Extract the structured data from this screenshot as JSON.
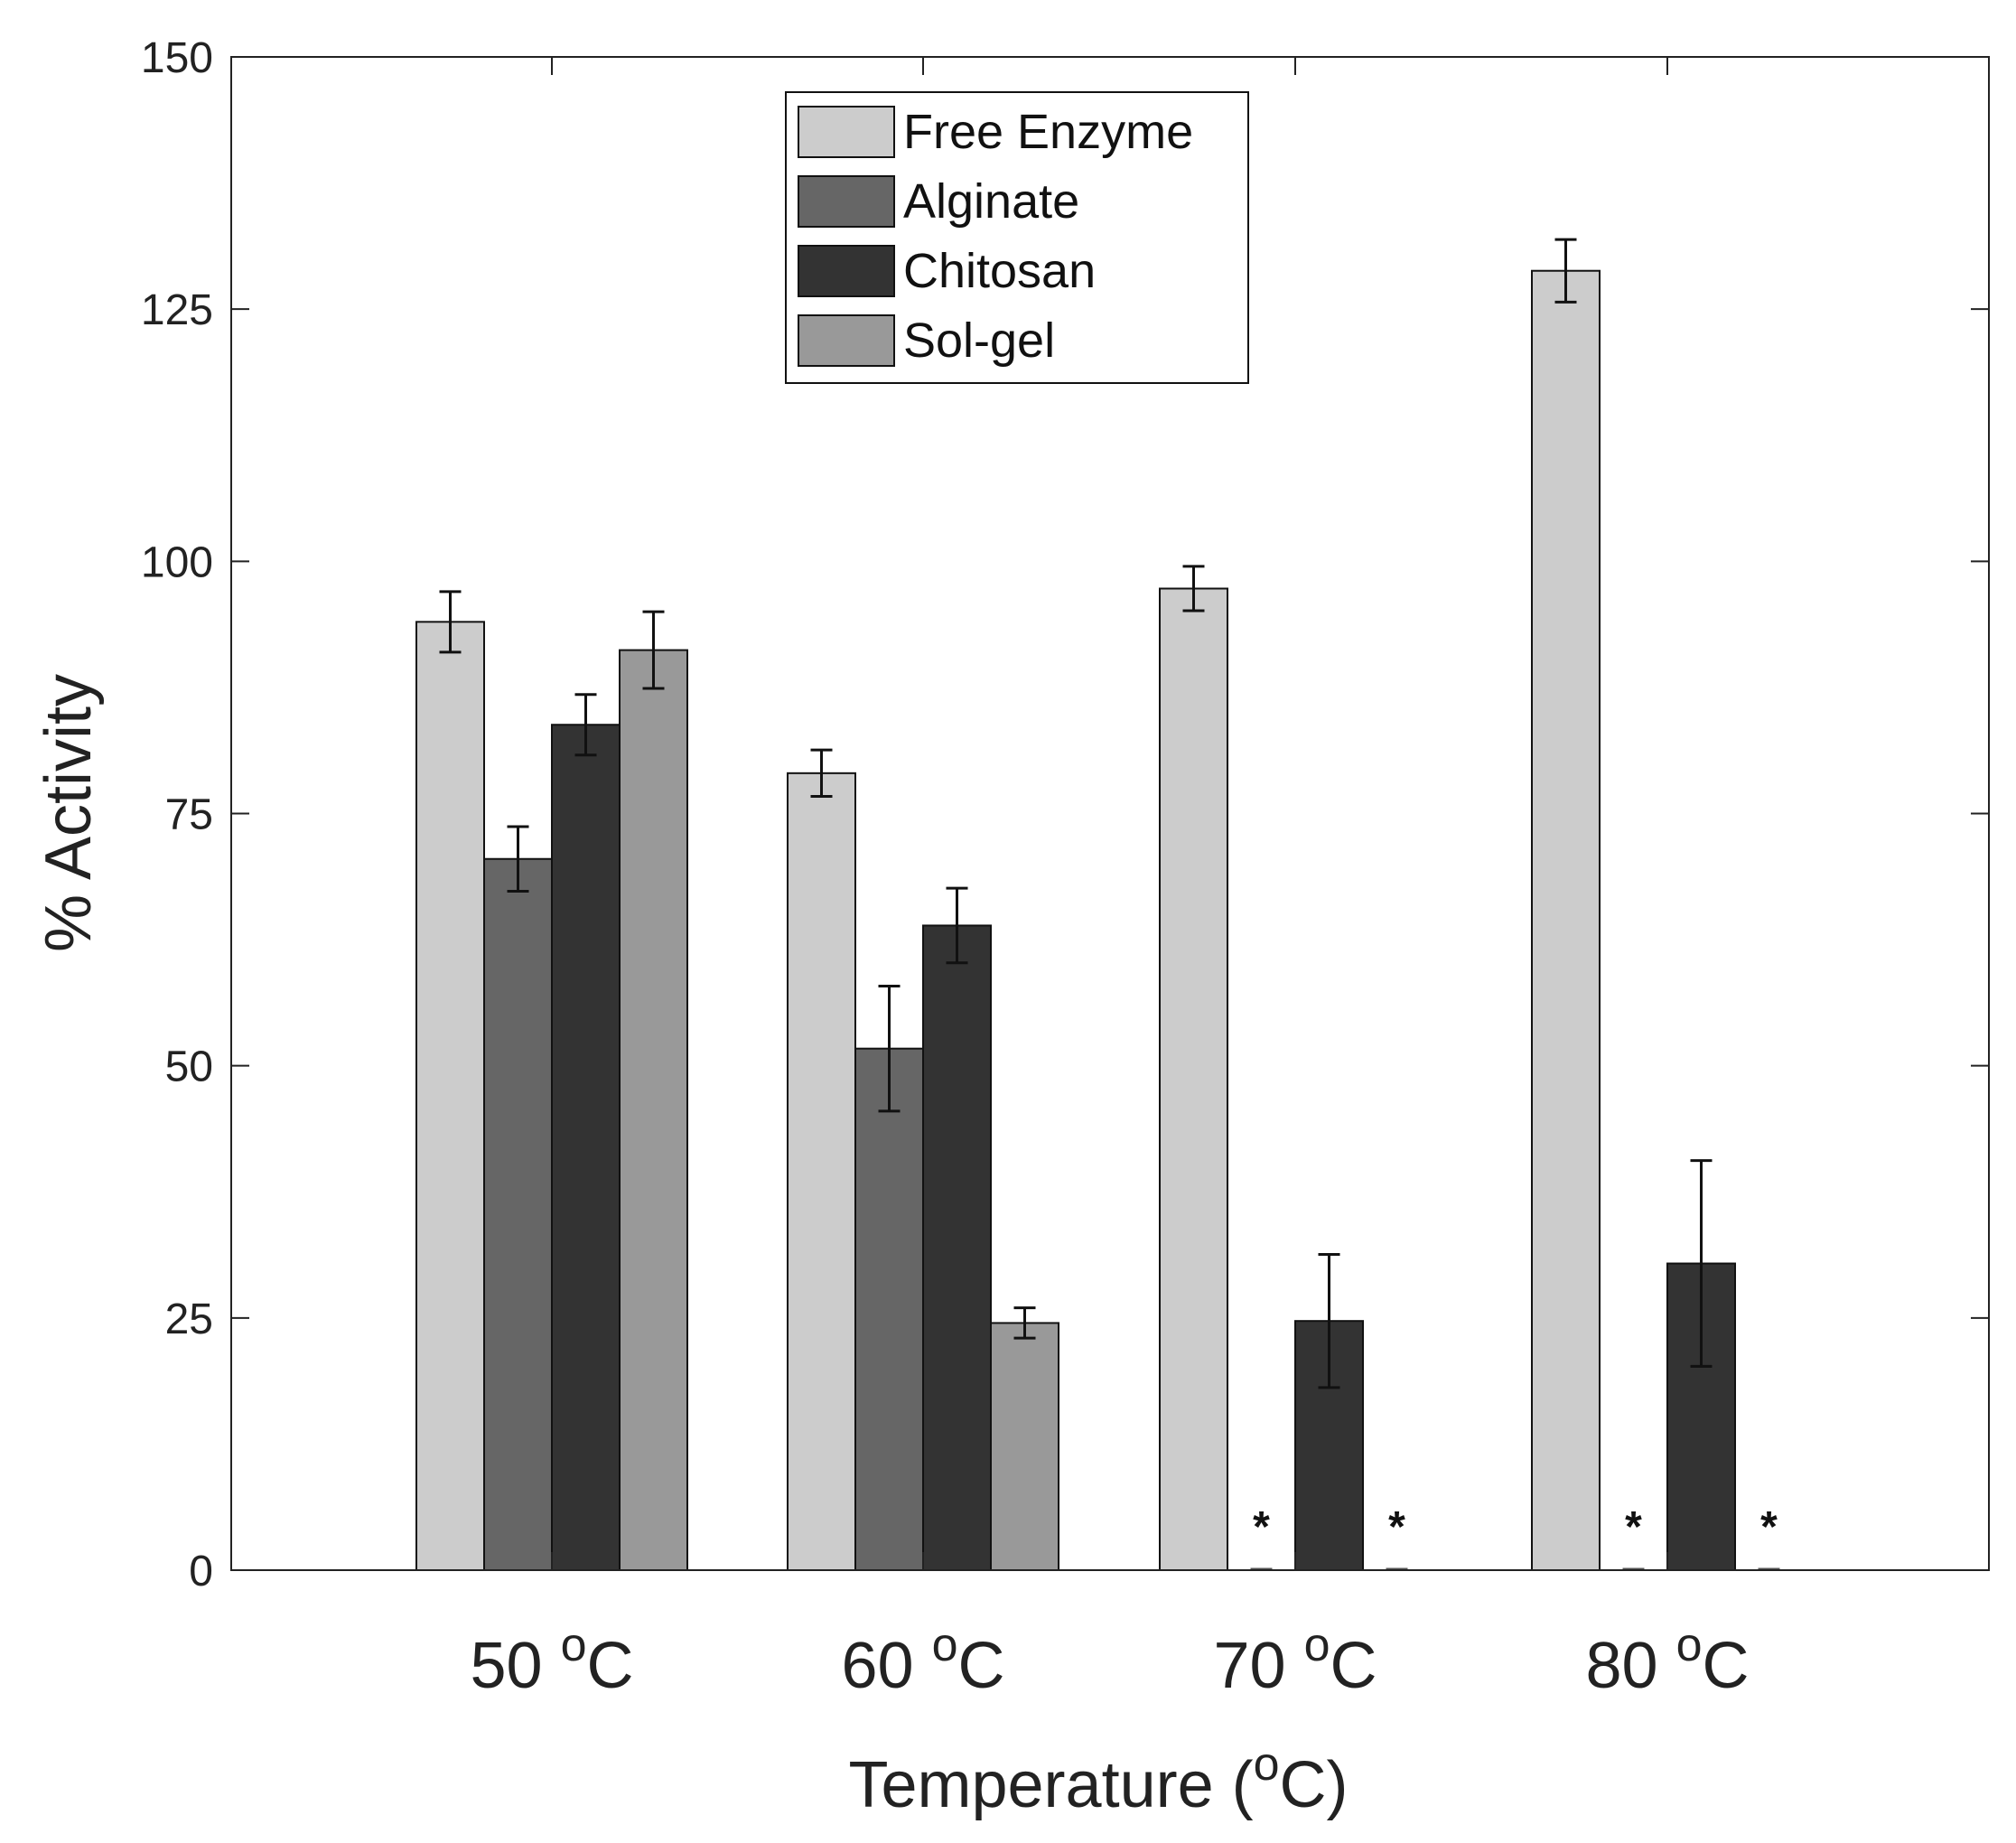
{
  "chart_data": {
    "type": "bar",
    "title": "",
    "xlabel": "Temperature (°C)",
    "xlabel_parts": {
      "before": "Temperature (",
      "sup": "o",
      "after": "C)"
    },
    "ylabel": "% Activity",
    "ylim": [
      0,
      150
    ],
    "yticks": [
      0,
      25,
      50,
      75,
      100,
      125,
      150
    ],
    "categories": [
      "50 °C",
      "60 °C",
      "70 °C",
      "80 °C"
    ],
    "category_parts": [
      {
        "num": "50 ",
        "sup": "o",
        "unit": "C"
      },
      {
        "num": "60 ",
        "sup": "o",
        "unit": "C"
      },
      {
        "num": "70 ",
        "sup": "o",
        "unit": "C"
      },
      {
        "num": "80 ",
        "sup": "o",
        "unit": "C"
      }
    ],
    "series": [
      {
        "name": "Free Enzyme",
        "color": "#cccccc",
        "values": [
          94,
          79,
          97.3,
          128.8
        ],
        "errors": [
          3,
          2.3,
          2.2,
          3.1
        ]
      },
      {
        "name": "Alginate",
        "color": "#666666",
        "values": [
          70.5,
          51.7,
          0,
          0
        ],
        "errors": [
          3.2,
          6.2,
          0,
          0
        ]
      },
      {
        "name": "Chitosan",
        "color": "#333333",
        "values": [
          83.8,
          63.9,
          24.7,
          30.4
        ],
        "errors": [
          3,
          3.7,
          6.6,
          10.2
        ]
      },
      {
        "name": "Sol-gel",
        "color": "#999999",
        "values": [
          91.2,
          24.5,
          0,
          0
        ],
        "errors": [
          3.8,
          1.5,
          0,
          0
        ]
      }
    ],
    "annotations": [
      {
        "category": 2,
        "series": 1,
        "text": "*"
      },
      {
        "category": 2,
        "series": 3,
        "text": "*"
      },
      {
        "category": 3,
        "series": 1,
        "text": "*"
      },
      {
        "category": 3,
        "series": 3,
        "text": "*"
      }
    ],
    "legend": "top-center",
    "grid": false
  }
}
